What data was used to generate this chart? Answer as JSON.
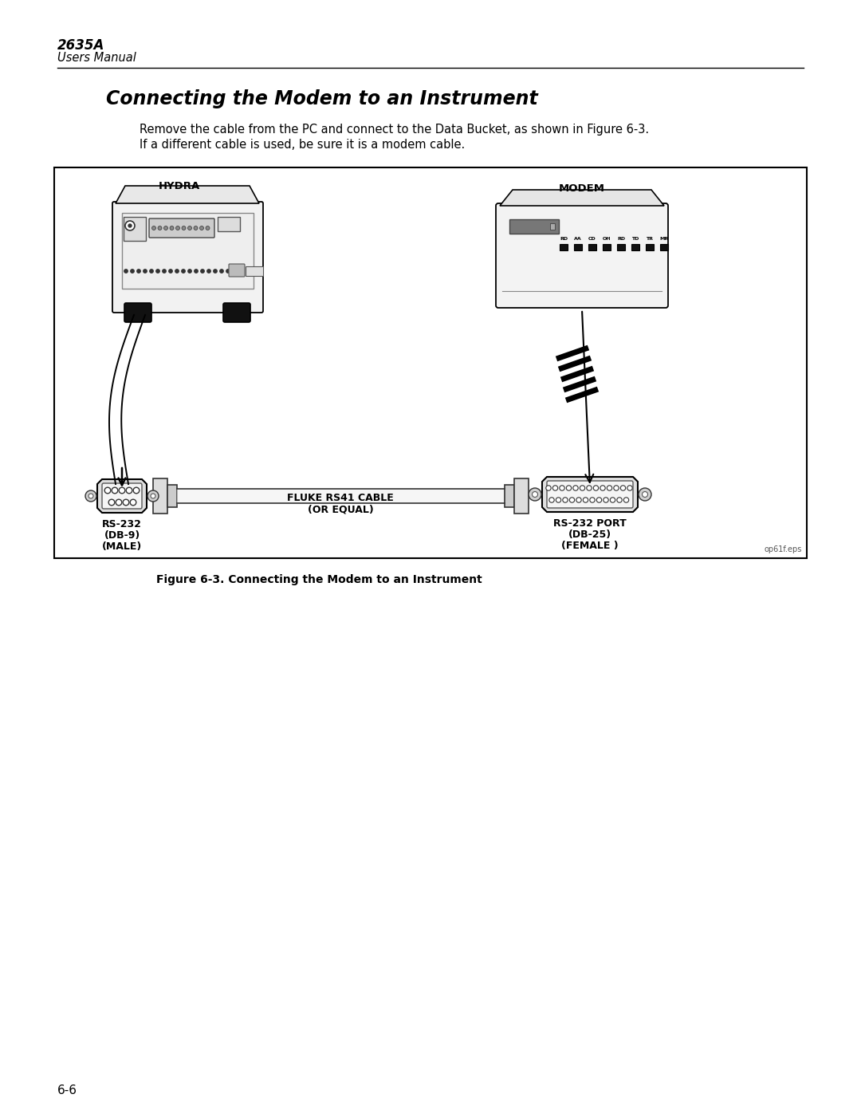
{
  "page_title": "2635A",
  "page_subtitle": "Users Manual",
  "section_title": "Connecting the Modem to an Instrument",
  "body_text_line1": "Remove the cable from the PC and connect to the Data Bucket, as shown in Figure 6-3.",
  "body_text_line2": "If a different cable is used, be sure it is a modem cable.",
  "figure_caption": "Figure 6-3. Connecting the Modem to an Instrument",
  "page_number": "6-6",
  "label_hydra": "HYDRA",
  "label_modem": "MODEM",
  "label_rs232_left1": "RS-232",
  "label_rs232_left2": "(DB-9)",
  "label_rs232_left3": "(MALE)",
  "label_cable1": "FLUKE RS41 CABLE",
  "label_cable2": "(OR EQUAL)",
  "label_rs232_right1": "RS-232 PORT",
  "label_rs232_right2": "(DB-25)",
  "label_rs232_right3": "(FEMALE )",
  "label_eps": "op61f.eps",
  "bg_color": "#ffffff",
  "box_color": "#000000",
  "text_color": "#000000"
}
